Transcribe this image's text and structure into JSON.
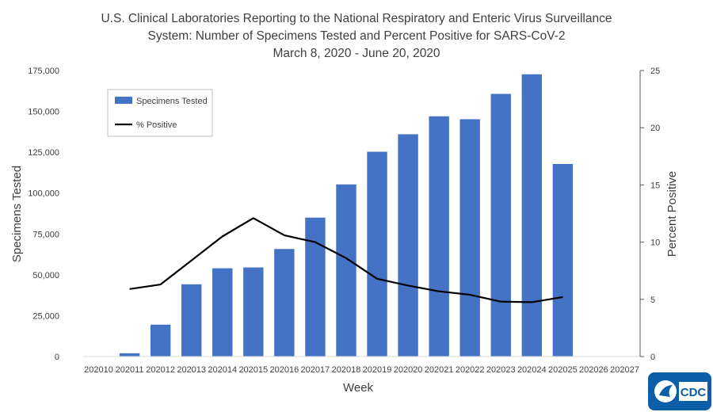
{
  "chart_data": {
    "type": "bar+line",
    "title": [
      "U.S. Clinical Laboratories Reporting to the National Respiratory and Enteric Virus Surveillance",
      "System: Number of Specimens Tested and Percent Positive for SARS-CoV-2",
      "March 8, 2020 - June 20, 2020"
    ],
    "xlabel": "Week",
    "ylabel_left": "Specimens Tested",
    "ylabel_right": "Percent Positive",
    "categories": [
      "202010",
      "202011",
      "202012",
      "202013",
      "202014",
      "202015",
      "202016",
      "202017",
      "202018",
      "202019",
      "202020",
      "202021",
      "202022",
      "202023",
      "202024",
      "202025",
      "202026",
      "202027"
    ],
    "series": [
      {
        "name": "Specimens Tested",
        "type": "bar",
        "axis": "left",
        "color": "#4472c4",
        "values": [
          0,
          2000,
          19500,
          44200,
          54000,
          54500,
          65800,
          85000,
          105300,
          125300,
          136000,
          147000,
          145200,
          160700,
          172700,
          117800,
          null,
          null
        ]
      },
      {
        "name": "% Positive",
        "type": "line",
        "axis": "right",
        "color": "#000000",
        "values": [
          null,
          5.9,
          6.3,
          8.4,
          10.5,
          12.1,
          10.6,
          10.0,
          8.6,
          6.8,
          6.2,
          5.7,
          5.4,
          4.8,
          4.75,
          5.2,
          null,
          null
        ]
      }
    ],
    "ylim_left": [
      0,
      175000
    ],
    "ylim_right": [
      0,
      25
    ],
    "yticks_left": [
      "0",
      "25,000",
      "50,000",
      "75,000",
      "100,000",
      "125,000",
      "150,000",
      "175,000"
    ],
    "yticks_left_values": [
      0,
      25000,
      50000,
      75000,
      100000,
      125000,
      150000,
      175000
    ],
    "yticks_right": [
      "0",
      "5",
      "10",
      "15",
      "20",
      "25"
    ],
    "yticks_right_values": [
      0,
      5,
      10,
      15,
      20,
      25
    ],
    "legend": [
      "Specimens Tested",
      "% Positive"
    ],
    "legend_position": "top-left",
    "grid": false
  },
  "logo": {
    "text": "CDC",
    "color": "#0b5ea8"
  }
}
